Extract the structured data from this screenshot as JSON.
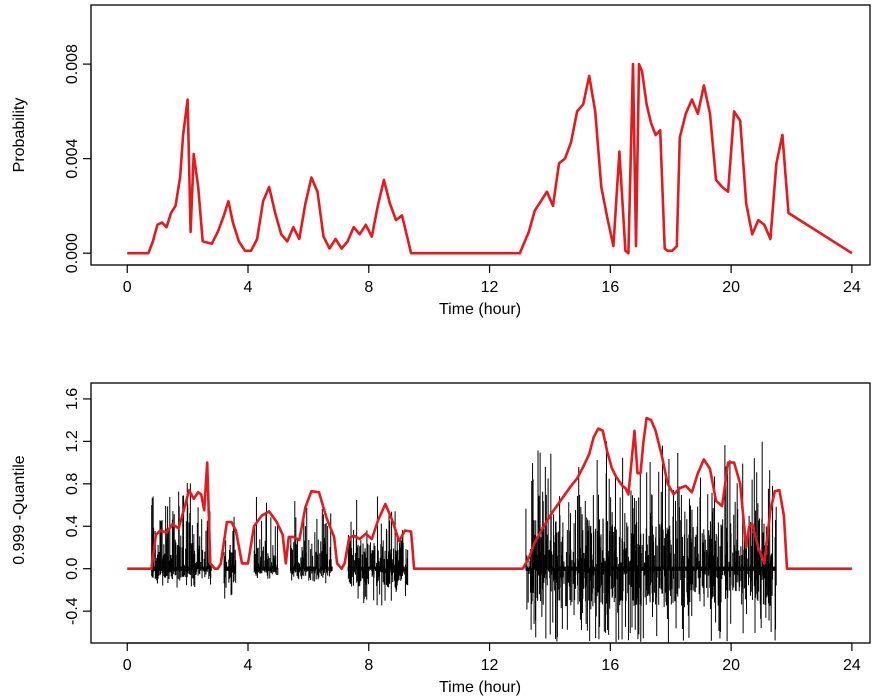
{
  "chart_data": [
    {
      "type": "line",
      "xlabel": "Time (hour)",
      "ylabel": "Probability",
      "xlim": [
        -1.2,
        24.6
      ],
      "ylim": [
        -0.0005,
        0.0105
      ],
      "x_ticks": [
        0,
        4,
        8,
        12,
        16,
        20,
        24
      ],
      "x_tick_labels": [
        "0",
        "4",
        "8",
        "12",
        "16",
        "20",
        "24"
      ],
      "y_ticks": [
        0.0,
        0.004,
        0.008
      ],
      "y_tick_labels": [
        "0.000",
        "0.004",
        "0.008"
      ],
      "grid": false,
      "colors": {
        "series": "#e41a1c"
      },
      "series": [
        {
          "color": "#e41a1c",
          "x": [
            0,
            0.7,
            0.85,
            1.0,
            1.15,
            1.3,
            1.45,
            1.6,
            1.75,
            1.85,
            2.0,
            2.1,
            2.2,
            2.35,
            2.5,
            2.8,
            3.0,
            3.2,
            3.35,
            3.5,
            3.7,
            3.9,
            4.1,
            4.3,
            4.5,
            4.7,
            4.9,
            5.1,
            5.3,
            5.5,
            5.7,
            5.9,
            6.1,
            6.3,
            6.5,
            6.7,
            6.9,
            7.1,
            7.3,
            7.5,
            7.7,
            7.9,
            8.1,
            8.3,
            8.5,
            8.7,
            8.9,
            9.1,
            9.4,
            13.0,
            13.3,
            13.5,
            13.7,
            13.9,
            14.1,
            14.3,
            14.5,
            14.7,
            14.9,
            15.1,
            15.3,
            15.5,
            15.7,
            15.9,
            16.1,
            16.3,
            16.5,
            16.6,
            16.75,
            16.85,
            16.95,
            17.05,
            17.2,
            17.35,
            17.5,
            17.65,
            17.8,
            17.9,
            18.05,
            18.2,
            18.3,
            18.5,
            18.7,
            18.9,
            19.1,
            19.3,
            19.5,
            19.7,
            19.9,
            20.1,
            20.3,
            20.5,
            20.7,
            20.9,
            21.1,
            21.3,
            21.5,
            21.7,
            21.9,
            24.0
          ],
          "y": [
            0.0,
            0.0,
            0.0005,
            0.0012,
            0.0013,
            0.0011,
            0.0017,
            0.002,
            0.0032,
            0.005,
            0.0065,
            0.0009,
            0.0042,
            0.0028,
            0.0005,
            0.0004,
            0.0009,
            0.0016,
            0.0022,
            0.0013,
            0.0005,
            0.0001,
            0.0001,
            0.0006,
            0.0022,
            0.0028,
            0.0017,
            0.0008,
            0.0005,
            0.0011,
            0.0006,
            0.0021,
            0.0032,
            0.0026,
            0.0007,
            0.0002,
            0.0006,
            0.0002,
            0.0005,
            0.0011,
            0.0008,
            0.0012,
            0.0007,
            0.002,
            0.0031,
            0.0021,
            0.0014,
            0.0016,
            0.0,
            0.0,
            0.0009,
            0.0018,
            0.0022,
            0.0026,
            0.002,
            0.0038,
            0.004,
            0.0047,
            0.006,
            0.0063,
            0.0075,
            0.006,
            0.0028,
            0.0015,
            0.0003,
            0.0043,
            0.0001,
            0.0,
            0.008,
            0.0003,
            0.008,
            0.0077,
            0.0063,
            0.0055,
            0.005,
            0.0052,
            0.0002,
            0.0001,
            0.0001,
            0.0003,
            0.0049,
            0.0059,
            0.0065,
            0.0059,
            0.0071,
            0.0059,
            0.0031,
            0.0028,
            0.0026,
            0.006,
            0.0056,
            0.0021,
            0.0008,
            0.0014,
            0.0012,
            0.0006,
            0.0038,
            0.005,
            0.0017,
            0.0
          ]
        }
      ]
    },
    {
      "type": "line",
      "xlabel": "Time (hour)",
      "ylabel": "0.999 -Quantile",
      "xlim": [
        -1.2,
        24.6
      ],
      "ylim": [
        -0.7,
        1.75
      ],
      "x_ticks": [
        0,
        4,
        8,
        12,
        16,
        20,
        24
      ],
      "x_tick_labels": [
        "0",
        "4",
        "8",
        "12",
        "16",
        "20",
        "24"
      ],
      "y_ticks": [
        -0.4,
        0.0,
        0.4,
        0.8,
        1.2,
        1.6
      ],
      "y_tick_labels": [
        "-0.4",
        "0.0",
        "0.4",
        "0.8",
        "1.2",
        "1.6"
      ],
      "grid": false,
      "colors": {
        "envelope": "#e41a1c",
        "spikes": "#000000"
      },
      "series": [
        {
          "color": "#e41a1c",
          "x": [
            0,
            0.8,
            0.95,
            1.1,
            1.3,
            1.5,
            1.7,
            1.9,
            2.05,
            2.2,
            2.35,
            2.45,
            2.55,
            2.65,
            2.75,
            2.9,
            3.0,
            3.1,
            3.3,
            3.45,
            3.6,
            3.8,
            4.0,
            4.2,
            4.45,
            4.7,
            4.95,
            5.15,
            5.25,
            5.35,
            5.5,
            5.7,
            5.9,
            6.1,
            6.35,
            6.6,
            6.85,
            6.95,
            7.1,
            7.2,
            7.35,
            7.5,
            7.7,
            7.9,
            8.1,
            8.3,
            8.55,
            8.8,
            9.0,
            9.2,
            9.4,
            9.5,
            13.1,
            13.3,
            13.5,
            13.7,
            13.9,
            14.1,
            14.3,
            14.5,
            14.7,
            14.9,
            15.1,
            15.3,
            15.45,
            15.6,
            15.75,
            15.9,
            16.05,
            16.2,
            16.4,
            16.5,
            16.6,
            16.8,
            16.9,
            17.0,
            17.1,
            17.2,
            17.35,
            17.5,
            17.7,
            17.9,
            18.1,
            18.3,
            18.5,
            18.7,
            18.9,
            19.1,
            19.3,
            19.5,
            19.7,
            19.9,
            20.1,
            20.3,
            20.5,
            20.6,
            20.7,
            20.9,
            21.1,
            21.3,
            21.45,
            21.6,
            21.75,
            21.85,
            24.0
          ],
          "y": [
            0.0,
            0.0,
            0.32,
            0.36,
            0.34,
            0.42,
            0.38,
            0.58,
            0.74,
            0.66,
            0.72,
            0.7,
            0.55,
            1.0,
            0.05,
            0.0,
            0.0,
            0.05,
            0.44,
            0.44,
            0.36,
            0.05,
            0.05,
            0.4,
            0.5,
            0.54,
            0.44,
            0.32,
            0.05,
            0.3,
            0.3,
            0.27,
            0.58,
            0.73,
            0.72,
            0.48,
            0.3,
            0.05,
            0.0,
            0.05,
            0.29,
            0.31,
            0.28,
            0.33,
            0.28,
            0.45,
            0.61,
            0.44,
            0.26,
            0.36,
            0.35,
            0.0,
            0.0,
            0.1,
            0.25,
            0.35,
            0.45,
            0.54,
            0.62,
            0.7,
            0.78,
            0.85,
            0.96,
            1.08,
            1.24,
            1.32,
            1.3,
            1.1,
            0.95,
            0.86,
            0.78,
            0.76,
            0.7,
            1.3,
            0.9,
            0.9,
            1.2,
            1.42,
            1.4,
            1.3,
            1.07,
            0.8,
            0.7,
            0.76,
            0.78,
            0.72,
            0.9,
            1.03,
            0.94,
            0.64,
            0.59,
            1.0,
            1.0,
            0.8,
            0.2,
            0.4,
            0.42,
            0.2,
            0.05,
            0.55,
            0.73,
            0.74,
            0.5,
            0.0,
            0.0
          ],
          "segments_note": ""
        }
      ],
      "spikes": {
        "color": "#000000",
        "ranges": [
          [
            0.8,
            2.8
          ],
          [
            3.2,
            3.6
          ],
          [
            4.2,
            5.0
          ],
          [
            5.4,
            6.8
          ],
          [
            7.3,
            9.3
          ],
          [
            13.2,
            21.5
          ]
        ],
        "max_abs": [
          0.95,
          0.55,
          0.7,
          0.85,
          0.7,
          1.35
        ],
        "min_val": [
          -0.2,
          -0.3,
          -0.1,
          -0.15,
          -0.35,
          -0.7
        ]
      }
    }
  ]
}
